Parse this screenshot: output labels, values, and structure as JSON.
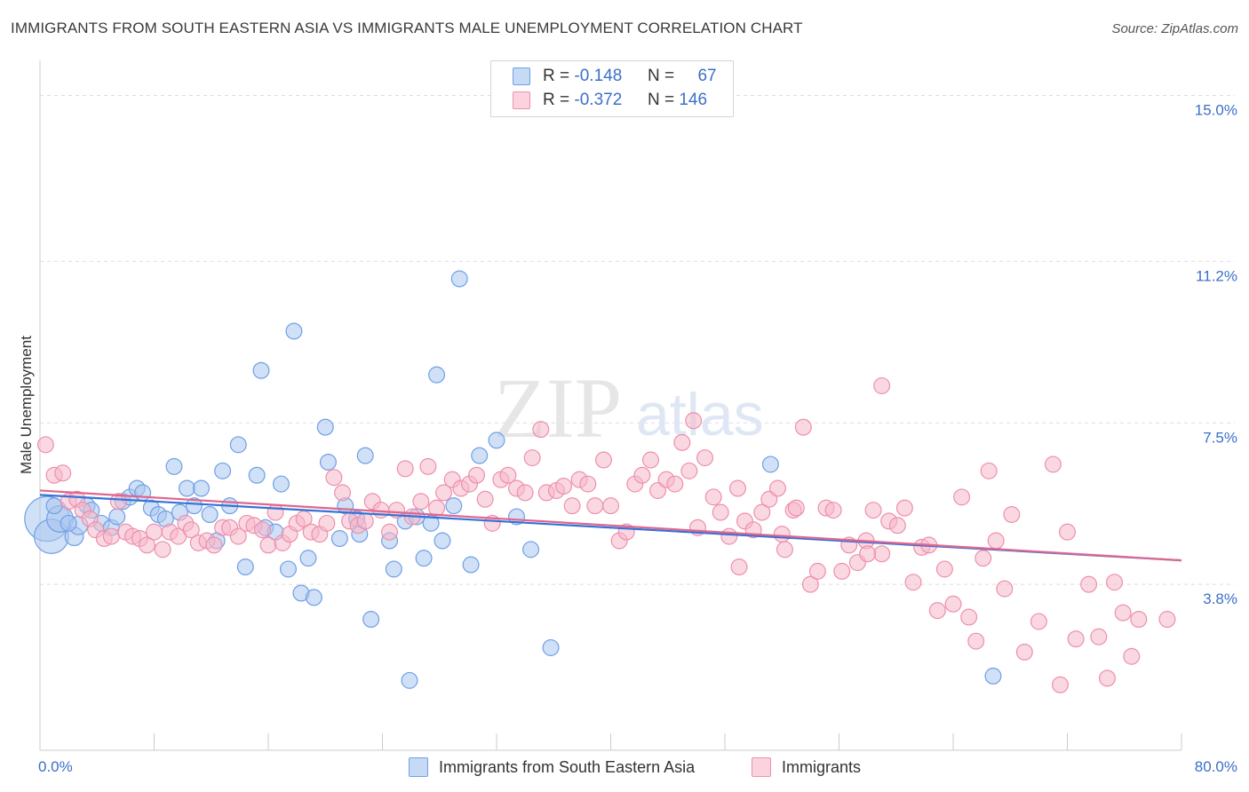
{
  "title": "IMMIGRANTS FROM SOUTH EASTERN ASIA VS IMMIGRANTS MALE UNEMPLOYMENT CORRELATION CHART",
  "source": "Source: ZipAtlas.com",
  "watermark": {
    "zip": "ZIP",
    "atlas": "atlas"
  },
  "legend_top": {
    "rows": [
      {
        "r_label": "R =",
        "r_value": "-0.148",
        "n_label": "N =",
        "n_value": "67",
        "color": "#a9c6ef"
      },
      {
        "r_label": "R =",
        "r_value": "-0.372",
        "n_label": "N =",
        "n_value": "146",
        "color": "#f6b8cb"
      }
    ]
  },
  "legend_bottom": [
    {
      "label": "Immigrants from South Eastern Asia",
      "color": "#a9c6ef"
    },
    {
      "label": "Immigrants",
      "color": "#f6b8cb"
    }
  ],
  "chart_data": {
    "type": "scatter",
    "xlabel": "",
    "ylabel": "Male Unemployment",
    "xlim": [
      0,
      80
    ],
    "ylim": [
      0,
      15.6
    ],
    "x_tick_labels": [
      "0.0%",
      "80.0%"
    ],
    "y_ticks": [
      3.8,
      7.5,
      11.2,
      15.0
    ],
    "y_tick_labels": [
      "3.8%",
      "7.5%",
      "11.2%",
      "15.0%"
    ],
    "grid": true,
    "legend_position": "top-center",
    "series": [
      {
        "name": "Immigrants from South Eastern Asia",
        "color": "#6f9fe6",
        "fill": "#a9c6ef",
        "trend": {
          "x": [
            0,
            80
          ],
          "y": [
            5.85,
            4.35
          ],
          "color": "#3572d6"
        },
        "points": [
          [
            0.5,
            5.3
          ],
          [
            0.8,
            4.9
          ],
          [
            1.4,
            5.3
          ],
          [
            2.4,
            4.9
          ],
          [
            2.7,
            5.15
          ],
          [
            3.3,
            5.6
          ],
          [
            3.6,
            5.5
          ],
          [
            4.3,
            5.2
          ],
          [
            5.0,
            5.1
          ],
          [
            5.4,
            5.35
          ],
          [
            5.8,
            5.7
          ],
          [
            6.3,
            5.8
          ],
          [
            6.8,
            6.0
          ],
          [
            7.2,
            5.9
          ],
          [
            7.8,
            5.55
          ],
          [
            8.3,
            5.4
          ],
          [
            8.8,
            5.3
          ],
          [
            9.4,
            6.5
          ],
          [
            9.8,
            5.45
          ],
          [
            10.3,
            6.0
          ],
          [
            10.8,
            5.6
          ],
          [
            11.3,
            6.0
          ],
          [
            11.9,
            5.4
          ],
          [
            12.4,
            4.8
          ],
          [
            12.8,
            6.4
          ],
          [
            13.3,
            5.6
          ],
          [
            13.9,
            7.0
          ],
          [
            14.4,
            4.2
          ],
          [
            15.2,
            6.3
          ],
          [
            15.8,
            5.1
          ],
          [
            15.5,
            8.7
          ],
          [
            16.5,
            5.0
          ],
          [
            16.9,
            6.1
          ],
          [
            17.4,
            4.15
          ],
          [
            17.8,
            9.6
          ],
          [
            18.3,
            3.6
          ],
          [
            18.8,
            4.4
          ],
          [
            19.2,
            3.5
          ],
          [
            20.0,
            7.4
          ],
          [
            20.2,
            6.6
          ],
          [
            21.0,
            4.85
          ],
          [
            21.4,
            5.6
          ],
          [
            22.2,
            5.3
          ],
          [
            22.4,
            4.95
          ],
          [
            22.8,
            6.75
          ],
          [
            23.2,
            3.0
          ],
          [
            24.5,
            4.8
          ],
          [
            24.8,
            4.15
          ],
          [
            25.6,
            5.25
          ],
          [
            25.9,
            1.6
          ],
          [
            26.4,
            5.35
          ],
          [
            26.9,
            4.4
          ],
          [
            27.4,
            5.2
          ],
          [
            27.8,
            8.6
          ],
          [
            28.2,
            4.8
          ],
          [
            29.0,
            5.6
          ],
          [
            29.4,
            10.8
          ],
          [
            30.2,
            4.25
          ],
          [
            30.8,
            6.75
          ],
          [
            32.0,
            7.1
          ],
          [
            33.4,
            5.35
          ],
          [
            34.4,
            4.6
          ],
          [
            35.8,
            2.35
          ],
          [
            51.2,
            6.55
          ],
          [
            66.8,
            1.7
          ],
          [
            1.0,
            5.6
          ],
          [
            2.0,
            5.2
          ]
        ],
        "sizes": [
          34,
          26,
          20,
          14,
          14,
          12,
          12,
          12,
          12,
          12,
          12,
          12,
          12,
          12,
          12,
          12,
          12,
          12,
          12,
          12,
          12,
          12,
          12,
          12,
          12,
          12,
          12,
          12,
          12,
          12,
          12,
          12,
          12,
          12,
          12,
          12,
          12,
          12,
          12,
          12,
          12,
          12,
          12,
          12,
          12,
          12,
          12,
          12,
          12,
          12,
          12,
          12,
          12,
          12,
          12,
          12,
          12,
          12,
          12,
          12,
          12,
          12,
          12,
          12,
          12,
          12,
          12
        ]
      },
      {
        "name": "Immigrants",
        "color": "#ee8fab",
        "fill": "#f6b8cb",
        "trend": {
          "x": [
            0,
            80
          ],
          "y": [
            5.95,
            4.35
          ],
          "color": "#e0668f"
        },
        "points": [
          [
            0.4,
            7.0
          ],
          [
            1.0,
            6.3
          ],
          [
            1.6,
            6.35
          ],
          [
            2.0,
            5.7
          ],
          [
            2.6,
            5.75
          ],
          [
            3.0,
            5.5
          ],
          [
            3.5,
            5.3
          ],
          [
            3.9,
            5.05
          ],
          [
            4.5,
            4.85
          ],
          [
            5.0,
            4.9
          ],
          [
            5.5,
            5.7
          ],
          [
            6.0,
            5.0
          ],
          [
            6.5,
            4.9
          ],
          [
            7.0,
            4.85
          ],
          [
            7.5,
            4.7
          ],
          [
            8.0,
            5.0
          ],
          [
            8.6,
            4.6
          ],
          [
            9.1,
            5.0
          ],
          [
            9.7,
            4.9
          ],
          [
            10.2,
            5.2
          ],
          [
            10.6,
            5.05
          ],
          [
            11.1,
            4.75
          ],
          [
            11.7,
            4.8
          ],
          [
            12.2,
            4.7
          ],
          [
            12.8,
            5.1
          ],
          [
            13.3,
            5.1
          ],
          [
            13.9,
            4.9
          ],
          [
            14.5,
            5.2
          ],
          [
            15.0,
            5.15
          ],
          [
            15.6,
            5.05
          ],
          [
            16.0,
            4.7
          ],
          [
            16.5,
            5.45
          ],
          [
            17.0,
            4.75
          ],
          [
            17.5,
            4.95
          ],
          [
            18.0,
            5.2
          ],
          [
            18.5,
            5.3
          ],
          [
            19.0,
            5.0
          ],
          [
            19.6,
            4.95
          ],
          [
            20.1,
            5.2
          ],
          [
            20.6,
            6.25
          ],
          [
            21.2,
            5.9
          ],
          [
            21.7,
            5.25
          ],
          [
            22.3,
            5.15
          ],
          [
            22.8,
            5.25
          ],
          [
            23.3,
            5.7
          ],
          [
            23.9,
            5.5
          ],
          [
            24.5,
            5.0
          ],
          [
            25.0,
            5.5
          ],
          [
            25.6,
            6.45
          ],
          [
            26.1,
            5.35
          ],
          [
            26.7,
            5.7
          ],
          [
            27.2,
            6.5
          ],
          [
            27.8,
            5.55
          ],
          [
            28.3,
            5.9
          ],
          [
            28.9,
            6.2
          ],
          [
            29.5,
            6.0
          ],
          [
            30.1,
            6.1
          ],
          [
            30.6,
            6.3
          ],
          [
            31.2,
            5.75
          ],
          [
            31.7,
            5.2
          ],
          [
            32.3,
            6.2
          ],
          [
            32.8,
            6.3
          ],
          [
            33.4,
            6.0
          ],
          [
            34.0,
            5.9
          ],
          [
            34.5,
            6.7
          ],
          [
            35.1,
            7.35
          ],
          [
            35.5,
            5.9
          ],
          [
            36.2,
            5.95
          ],
          [
            36.7,
            6.05
          ],
          [
            37.3,
            5.6
          ],
          [
            37.8,
            6.2
          ],
          [
            38.4,
            6.1
          ],
          [
            38.9,
            5.6
          ],
          [
            39.5,
            6.65
          ],
          [
            40.0,
            5.6
          ],
          [
            40.6,
            4.8
          ],
          [
            41.1,
            5.0
          ],
          [
            41.7,
            6.1
          ],
          [
            42.2,
            6.3
          ],
          [
            42.8,
            6.65
          ],
          [
            43.3,
            5.95
          ],
          [
            43.9,
            6.2
          ],
          [
            44.5,
            6.1
          ],
          [
            45.0,
            7.05
          ],
          [
            45.5,
            6.4
          ],
          [
            46.1,
            5.1
          ],
          [
            46.6,
            6.7
          ],
          [
            47.2,
            5.8
          ],
          [
            47.7,
            5.45
          ],
          [
            48.3,
            4.9
          ],
          [
            48.9,
            6.0
          ],
          [
            49.4,
            5.25
          ],
          [
            50.0,
            5.05
          ],
          [
            50.6,
            5.45
          ],
          [
            51.1,
            5.75
          ],
          [
            51.7,
            6.0
          ],
          [
            52.2,
            4.6
          ],
          [
            52.8,
            5.5
          ],
          [
            53.5,
            7.4
          ],
          [
            54.0,
            3.8
          ],
          [
            54.5,
            4.1
          ],
          [
            55.1,
            5.55
          ],
          [
            55.6,
            5.5
          ],
          [
            56.2,
            4.1
          ],
          [
            56.7,
            4.7
          ],
          [
            57.3,
            4.3
          ],
          [
            57.9,
            4.8
          ],
          [
            58.4,
            5.5
          ],
          [
            59.0,
            4.5
          ],
          [
            59.5,
            5.25
          ],
          [
            60.1,
            5.15
          ],
          [
            60.6,
            5.55
          ],
          [
            61.2,
            3.85
          ],
          [
            61.8,
            4.65
          ],
          [
            62.3,
            4.7
          ],
          [
            62.9,
            3.2
          ],
          [
            63.4,
            4.15
          ],
          [
            64.0,
            3.35
          ],
          [
            64.6,
            5.8
          ],
          [
            65.1,
            3.05
          ],
          [
            65.6,
            2.5
          ],
          [
            66.1,
            4.4
          ],
          [
            66.5,
            6.4
          ],
          [
            67.0,
            4.8
          ],
          [
            67.6,
            3.7
          ],
          [
            68.1,
            5.4
          ],
          [
            69.0,
            2.25
          ],
          [
            70.0,
            2.95
          ],
          [
            71.0,
            6.55
          ],
          [
            71.5,
            1.5
          ],
          [
            72.0,
            5.0
          ],
          [
            72.6,
            2.55
          ],
          [
            73.5,
            3.8
          ],
          [
            74.2,
            2.6
          ],
          [
            74.8,
            1.65
          ],
          [
            75.3,
            3.85
          ],
          [
            75.9,
            3.15
          ],
          [
            76.5,
            2.15
          ],
          [
            77.0,
            3.0
          ],
          [
            79.0,
            3.0
          ],
          [
            52.0,
            4.95
          ],
          [
            49.0,
            4.2
          ],
          [
            53.0,
            5.55
          ],
          [
            58.0,
            4.5
          ],
          [
            59.0,
            8.35
          ],
          [
            45.8,
            7.55
          ]
        ],
        "sizes": [
          12,
          12,
          12,
          12,
          12,
          12,
          12,
          12,
          12,
          12,
          12,
          12,
          12,
          12,
          12,
          12,
          12,
          12,
          12,
          12,
          12,
          12,
          12,
          12,
          12,
          12,
          12,
          12,
          12,
          12,
          12,
          12,
          12,
          12,
          12,
          12,
          12,
          12,
          12,
          12,
          12,
          12,
          12,
          12,
          12,
          12,
          12,
          12,
          12,
          12,
          12,
          12,
          12,
          12,
          12,
          12,
          12,
          12,
          12,
          12,
          12,
          12,
          12,
          12,
          12,
          12,
          12,
          12,
          12,
          12,
          12,
          12,
          12,
          12,
          12,
          12,
          12,
          12,
          12,
          12,
          12,
          12,
          12,
          12,
          12,
          12,
          12,
          12,
          12,
          12,
          12,
          12,
          12,
          12,
          12,
          12,
          12,
          12,
          12,
          12,
          12,
          12,
          12,
          12,
          12,
          12,
          12,
          12,
          12,
          12,
          12,
          12,
          12,
          12,
          12,
          12,
          12,
          12,
          12,
          12,
          12,
          12,
          12,
          12,
          12,
          12,
          12,
          12,
          12,
          12,
          12,
          12,
          12,
          12,
          12,
          12,
          12,
          12,
          12,
          12,
          12,
          12,
          12,
          12,
          12,
          12
        ]
      }
    ]
  }
}
